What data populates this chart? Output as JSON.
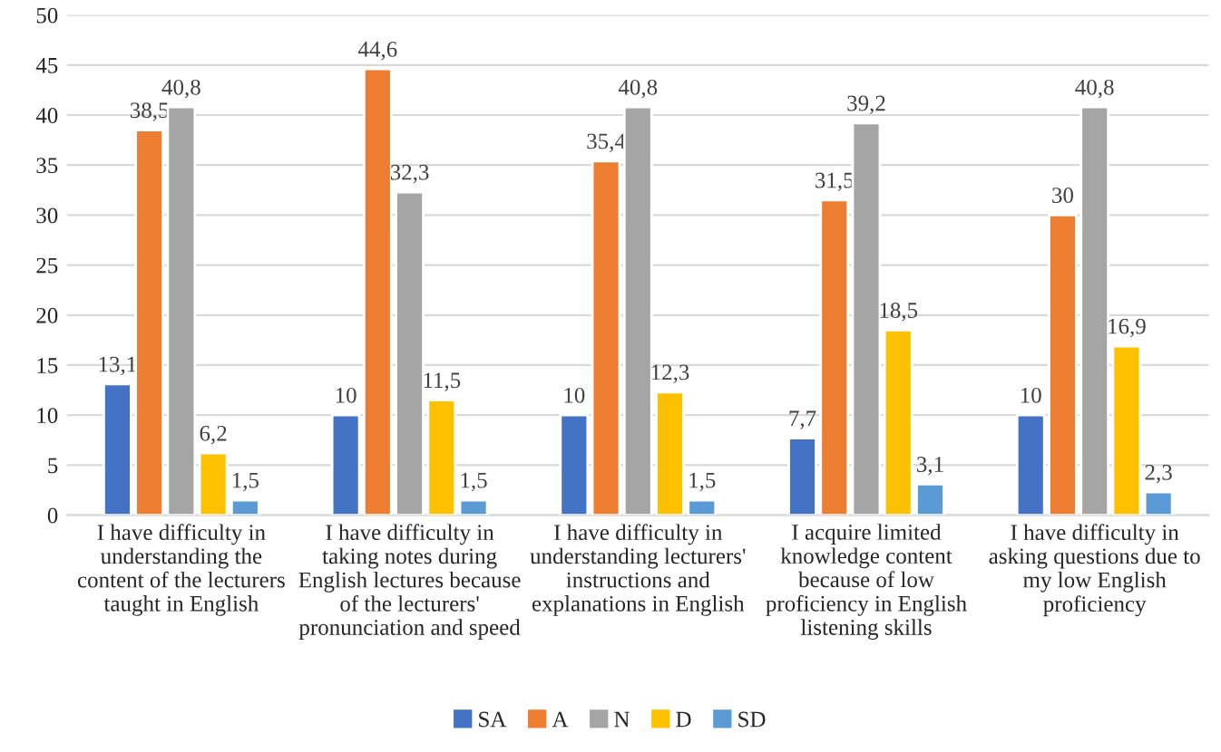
{
  "chart_data": {
    "type": "bar",
    "categories": [
      "I have difficulty in\nunderstanding the\ncontent of the lecturers\ntaught in English",
      "I have difficulty in\ntaking notes during\nEnglish lectures because\nof the lecturers'\npronunciation and speed",
      "I have difficulty in\nunderstanding lecturers'\ninstructions and\nexplanations in English",
      "I acquire limited\nknowledge content\nbecause of low\nproficiency in English\nlistening skills",
      "I have difficulty in\nasking questions due to\nmy low English\nproficiency"
    ],
    "series": [
      {
        "name": "SA",
        "color": "#4472c4",
        "values": [
          13.1,
          10,
          10,
          7.7,
          10
        ],
        "value_labels": [
          "13,1",
          "10",
          "10",
          "7,7",
          "10"
        ]
      },
      {
        "name": "A",
        "color": "#ed7d31",
        "values": [
          38.5,
          44.6,
          35.4,
          31.5,
          30
        ],
        "value_labels": [
          "38,5",
          "44,6",
          "35,4",
          "31,5",
          "30"
        ]
      },
      {
        "name": "N",
        "color": "#a5a5a5",
        "values": [
          40.8,
          32.3,
          40.8,
          39.2,
          40.8
        ],
        "value_labels": [
          "40,8",
          "32,3",
          "40,8",
          "39,2",
          "40,8"
        ]
      },
      {
        "name": "D",
        "color": "#ffc000",
        "values": [
          6.2,
          11.5,
          12.3,
          18.5,
          16.9
        ],
        "value_labels": [
          "6,2",
          "11,5",
          "12,3",
          "18,5",
          "16,9"
        ]
      },
      {
        "name": "SD",
        "color": "#5b9bd5",
        "values": [
          1.5,
          1.5,
          1.5,
          3.1,
          2.3
        ],
        "value_labels": [
          "1,5",
          "1,5",
          "1,5",
          "3,1",
          "2,3"
        ]
      }
    ],
    "ylim": [
      0,
      50
    ],
    "yticks": [
      0,
      5,
      10,
      15,
      20,
      25,
      30,
      35,
      40,
      45,
      50
    ],
    "grid": "y",
    "legend": "bottom"
  }
}
